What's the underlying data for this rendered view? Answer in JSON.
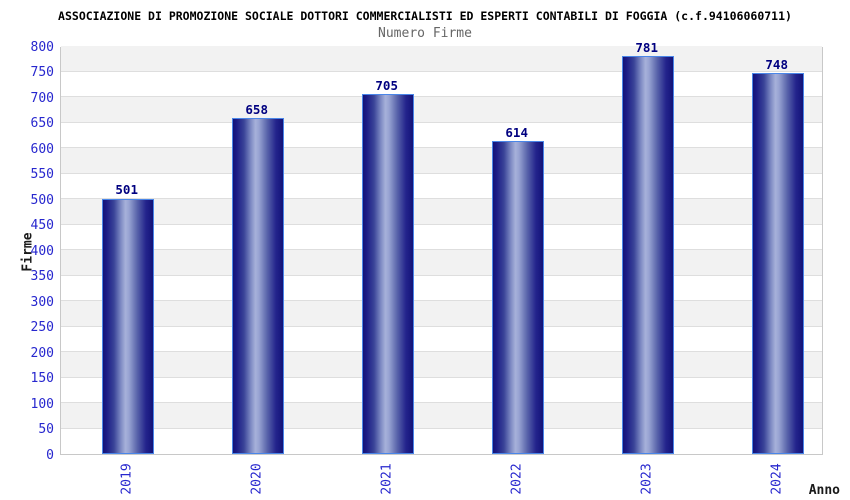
{
  "chart_data": {
    "type": "bar",
    "title": "ASSOCIAZIONE DI PROMOZIONE SOCIALE DOTTORI COMMERCIALISTI ED ESPERTI CONTABILI DI FOGGIA (c.f.94106060711)",
    "subtitle": "Numero Firme",
    "xlabel": "Anno",
    "ylabel": "Firme",
    "categories": [
      "2019",
      "2020",
      "2021",
      "2022",
      "2023",
      "2024"
    ],
    "values": [
      501,
      658,
      705,
      614,
      781,
      748
    ],
    "ylim": [
      0,
      800
    ],
    "ytick_step": 50,
    "grid": true,
    "legend": "none",
    "band_pattern": "alternating horizontal 50-unit bands, white from 0, gray above",
    "colors": {
      "bar_dark": "#131378",
      "bar_highlight": "#a7b1da",
      "bar_border": "#4a86e8",
      "tick_label": "#2727ce",
      "value_label": "#000080",
      "band_gray": "#f2f2f2",
      "band_white": "#ffffff",
      "gridline": "#dedede",
      "plot_border": "#c8c8c8",
      "title_color": "#000000",
      "subtitle_color": "#666666",
      "axis_label_color": "#1a1a1a"
    }
  }
}
